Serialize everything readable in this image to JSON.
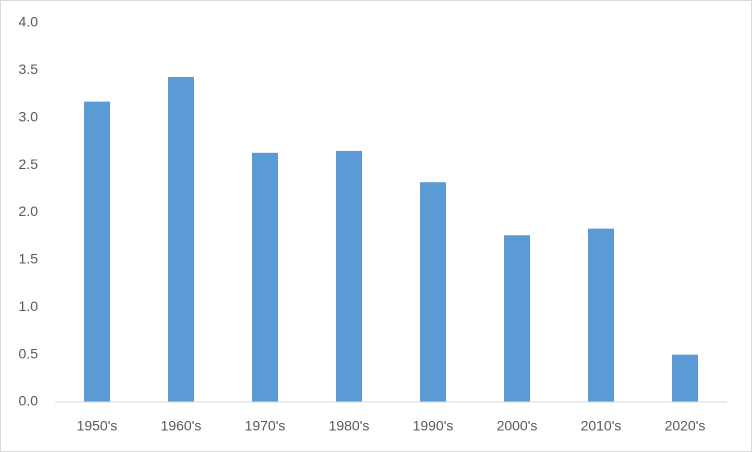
{
  "chart_data": {
    "type": "bar",
    "categories": [
      "1950's",
      "1960's",
      "1970's",
      "1980's",
      "1990's",
      "2000's",
      "2010's",
      "2020's"
    ],
    "values": [
      3.17,
      3.43,
      2.63,
      2.65,
      2.32,
      1.76,
      1.83,
      0.5
    ],
    "color": "#5b9bd5",
    "ylim": [
      0,
      4
    ],
    "yticks": [
      {
        "value": 0,
        "label": "0.0"
      },
      0.5,
      {
        "value": 1,
        "label": "1.0"
      },
      1.5,
      {
        "value": 2,
        "label": "2.0"
      },
      2.5,
      {
        "value": 3,
        "label": "3.0"
      },
      3.5,
      {
        "value": 4,
        "label": "4.0"
      }
    ],
    "grid": false
  }
}
